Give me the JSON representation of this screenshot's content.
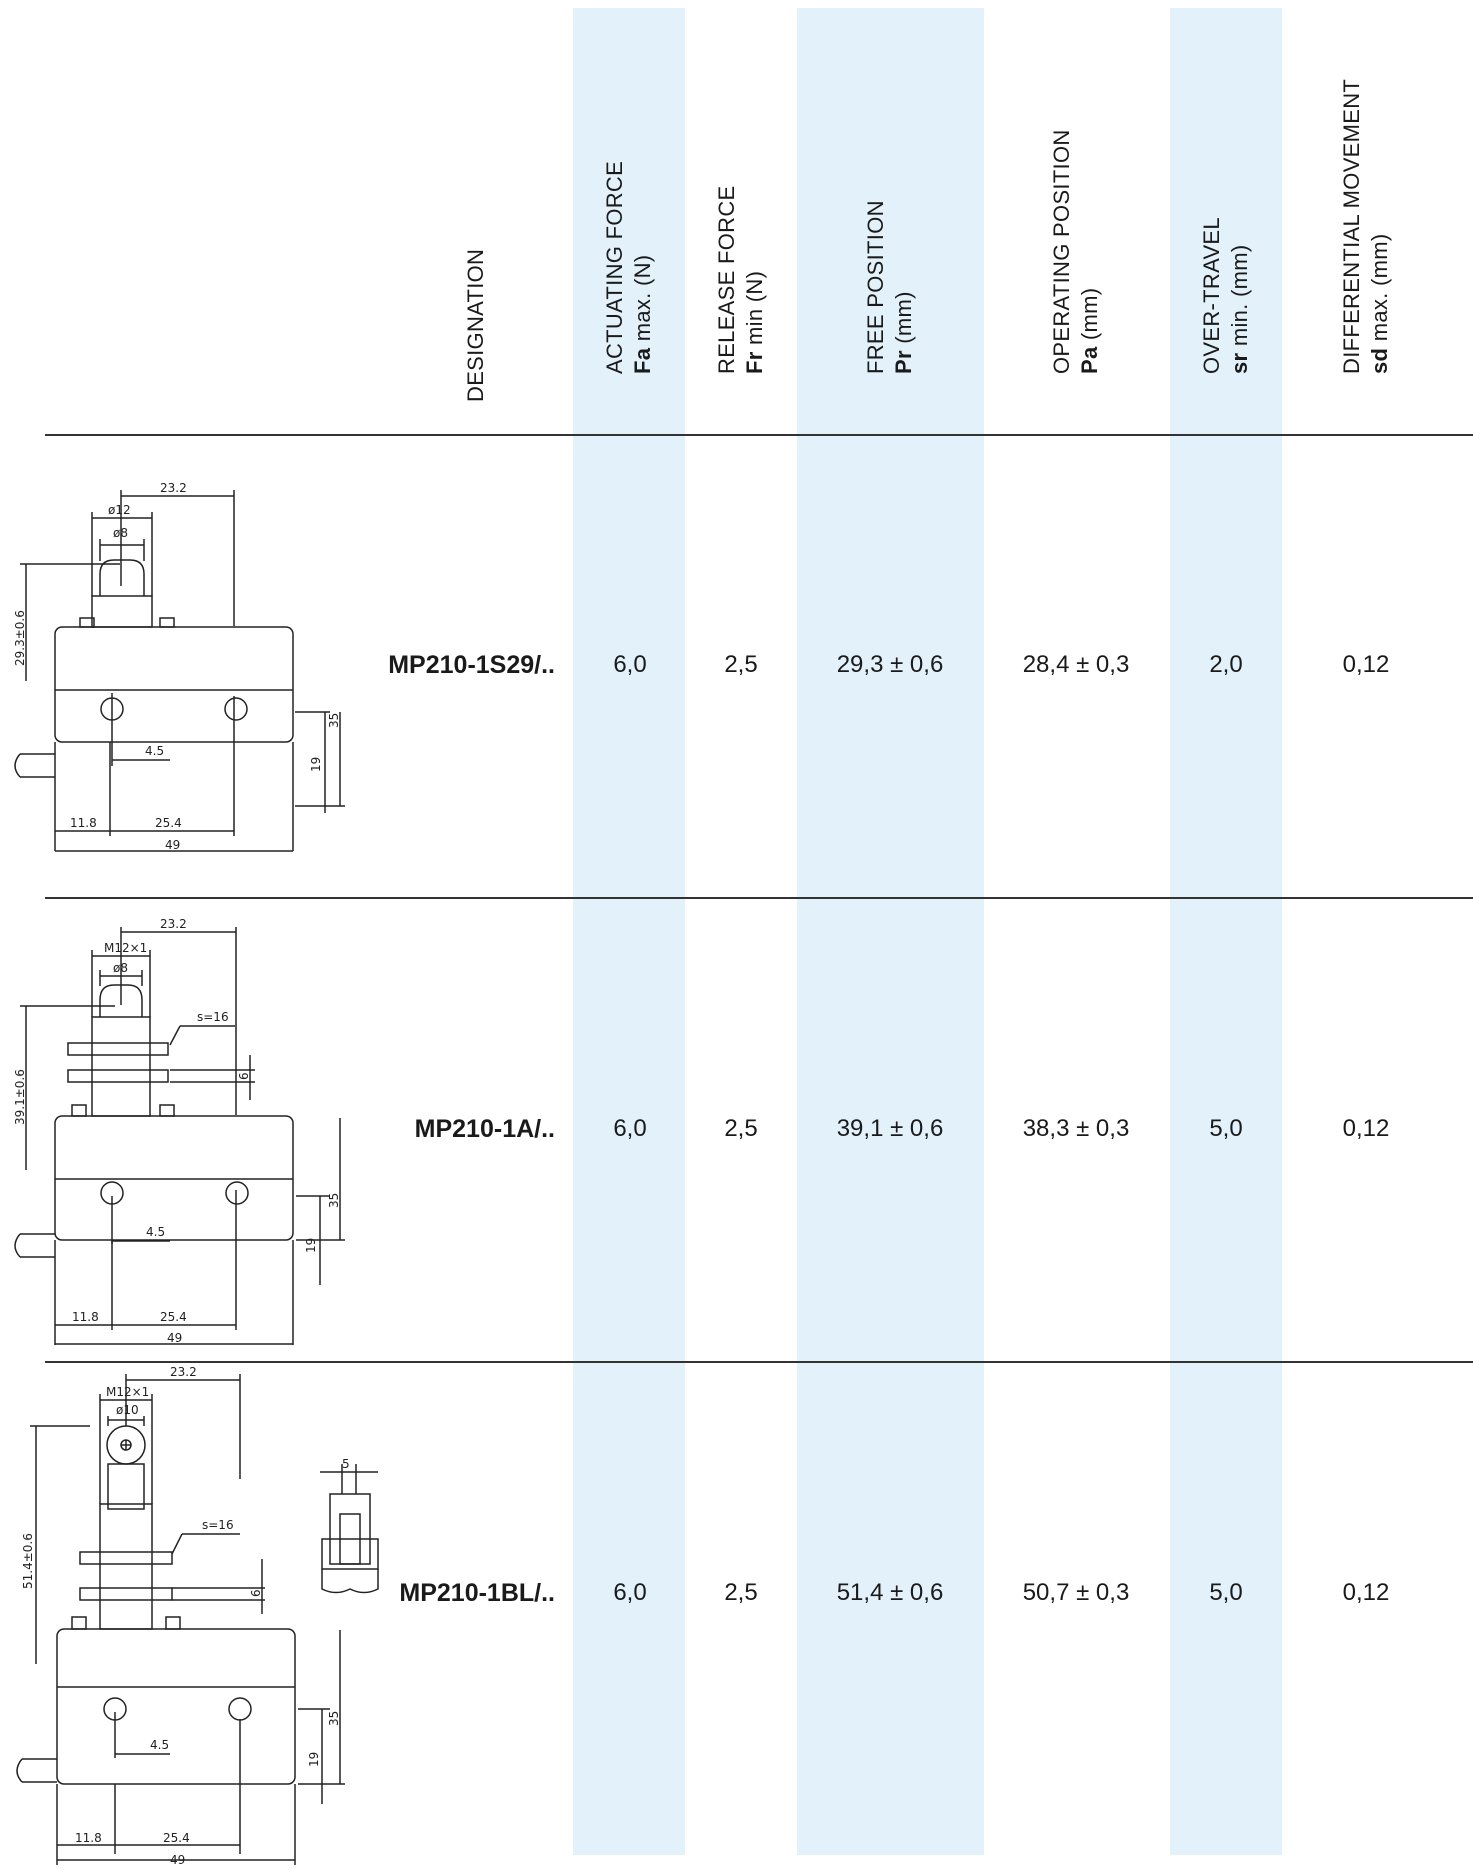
{
  "headers": {
    "designation": "DESIGNATION",
    "actuating_force": {
      "line1": "ACTUATING FORCE",
      "sym": "Fa",
      "rest": " max. (N)"
    },
    "release_force": {
      "line1": "RELEASE FORCE",
      "sym": "Fr",
      "rest": " min (N)"
    },
    "free_position": {
      "line1": "FREE POSITION",
      "sym": "Pr",
      "rest": " (mm)"
    },
    "operating_position": {
      "line1": "OPERATING POSITION",
      "sym": "Pa",
      "rest": " (mm)"
    },
    "over_travel": {
      "line1": "OVER-TRAVEL",
      "sym": "sr",
      "rest": " min. (mm)"
    },
    "differential_movement": {
      "line1": "DIFFERENTIAL MOVEMENT",
      "sym": "sd",
      "rest": " max. (mm)"
    }
  },
  "rows": [
    {
      "designation": "MP210-1S29/..",
      "actuating_force": "6,0",
      "release_force": "2,5",
      "free_position": "29,3 ± 0,6",
      "operating_position": "28,4 ± 0,3",
      "over_travel": "2,0",
      "differential_movement": "0,12",
      "dims": {
        "top": "23.2",
        "d1": "ø12",
        "d2": "ø8",
        "height": "29.3±0.6",
        "h35": "35",
        "h19": "19",
        "d45": "4.5",
        "b118": "11.8",
        "b254": "25.4",
        "b49": "49"
      }
    },
    {
      "designation": "MP210-1A/..",
      "actuating_force": "6,0",
      "release_force": "2,5",
      "free_position": "39,1 ± 0,6",
      "operating_position": "38,3 ± 0,3",
      "over_travel": "5,0",
      "differential_movement": "0,12",
      "dims": {
        "top": "23.2",
        "d1": "M12×1",
        "d2": "ø8",
        "s": "s=16",
        "d6": "6",
        "height": "39.1±0.6",
        "h35": "35",
        "h19": "19",
        "d45": "4.5",
        "b118": "11.8",
        "b254": "25.4",
        "b49": "49"
      }
    },
    {
      "designation": "MP210-1BL/..",
      "actuating_force": "6,0",
      "release_force": "2,5",
      "free_position": "51,4 ± 0,6",
      "operating_position": "50,7 ± 0,3",
      "over_travel": "5,0",
      "differential_movement": "0,12",
      "dims": {
        "top": "23.2",
        "d1": "M12×1",
        "d2": "ø10",
        "s": "s=16",
        "d6": "6",
        "d5": "5",
        "height": "51.4±0.6",
        "h35": "35",
        "h19": "19",
        "d45": "4.5",
        "b118": "11.8",
        "b254": "25.4",
        "b49": "49"
      }
    }
  ]
}
